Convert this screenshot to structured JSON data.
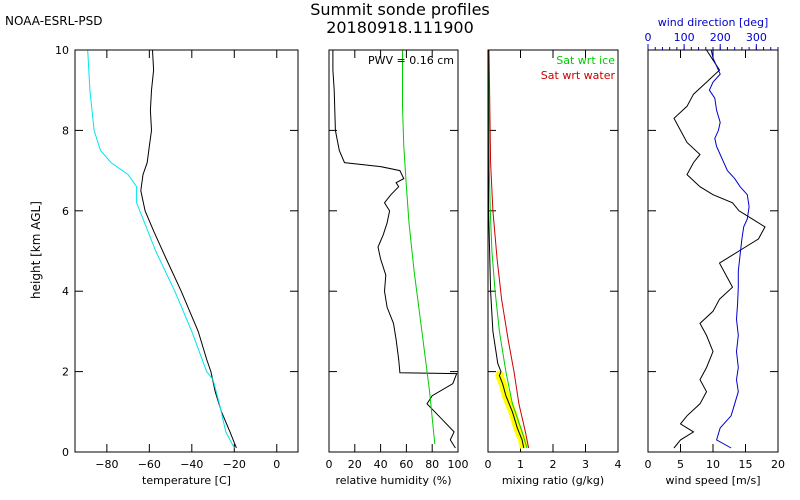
{
  "figure": {
    "org_label": "NOAA-ESRL-PSD",
    "title_line1": "Summit sonde profiles",
    "title_line2": "20180918.111900",
    "ylabel": "height [km AGL]"
  },
  "colors": {
    "axis": "#000000",
    "temperature": "#000000",
    "dewpoint": "#00e5ee",
    "rh": "#000000",
    "rh_ice_ref": "#00cc00",
    "mixing_ratio": "#000000",
    "mixing_ratio_band": "#ffff00",
    "sat_ice": "#00cc00",
    "sat_water": "#cc0000",
    "wind_speed": "#000000",
    "wind_direction": "#0000cc"
  },
  "chart_data": [
    {
      "type": "line",
      "id": "temperature",
      "xlabel": "temperature [C]",
      "ylabel": "height [km AGL]",
      "xlim": [
        -95,
        10
      ],
      "ylim": [
        0,
        10
      ],
      "xticks": [
        -80,
        -60,
        -40,
        -20,
        0
      ],
      "yticks": [
        0,
        2,
        4,
        6,
        8,
        10
      ],
      "series": [
        {
          "key": "temperature",
          "color": "#000000",
          "x": [
            -19,
            -22,
            -26,
            -29,
            -31,
            -33,
            -37,
            -45,
            -52,
            -58,
            -62,
            -64,
            -63,
            -61,
            -60,
            -59,
            -59.5,
            -59,
            -58,
            -58.5
          ],
          "y": [
            0.1,
            0.5,
            1.0,
            1.5,
            2.0,
            2.3,
            3.0,
            4.0,
            4.8,
            5.5,
            6.0,
            6.5,
            6.9,
            7.2,
            7.6,
            8.0,
            8.5,
            9.0,
            9.5,
            10.0
          ]
        },
        {
          "key": "dewpoint",
          "color": "#00e5ee",
          "x": [
            -20,
            -24,
            -27,
            -30,
            -33,
            -40,
            -48,
            -57,
            -63,
            -66,
            -66,
            -70,
            -78,
            -83,
            -86,
            -87,
            -88,
            -89
          ],
          "y": [
            0.1,
            0.5,
            1.2,
            1.8,
            2.0,
            3.0,
            4.0,
            5.0,
            5.8,
            6.2,
            6.6,
            6.9,
            7.2,
            7.5,
            8.0,
            8.5,
            9.0,
            10.0
          ]
        }
      ]
    },
    {
      "type": "line",
      "id": "relative-humidity",
      "xlabel": "relative humidity (%)",
      "xlim": [
        0,
        100
      ],
      "ylim": [
        0,
        10
      ],
      "xticks": [
        0,
        20,
        40,
        60,
        80,
        100
      ],
      "annotation": "PWV = 0.16 cm",
      "series": [
        {
          "key": "rh",
          "color": "#000000",
          "x": [
            98,
            94,
            97,
            88,
            82,
            76,
            80,
            96,
            99,
            55,
            54,
            52,
            50,
            45,
            43,
            44,
            40,
            38,
            42,
            45,
            47,
            43,
            48,
            54,
            52,
            58,
            55,
            40,
            12,
            8,
            5,
            4,
            3,
            3
          ],
          "y": [
            0.1,
            0.3,
            0.5,
            0.8,
            1.0,
            1.2,
            1.4,
            1.7,
            1.95,
            1.97,
            2.3,
            2.8,
            3.2,
            3.6,
            4.0,
            4.4,
            4.8,
            5.1,
            5.4,
            5.7,
            6.0,
            6.2,
            6.4,
            6.6,
            6.7,
            6.8,
            7.0,
            7.1,
            7.2,
            7.5,
            8.0,
            9.0,
            9.5,
            10.0
          ]
        },
        {
          "key": "rh_ice_ref",
          "color": "#00cc00",
          "x": [
            82,
            78,
            72,
            66,
            62,
            60,
            58,
            57,
            57
          ],
          "y": [
            0.2,
            1.5,
            3.0,
            4.5,
            5.7,
            6.6,
            7.6,
            8.6,
            10.0
          ]
        }
      ]
    },
    {
      "type": "line",
      "id": "mixing-ratio",
      "xlabel": "mixing ratio (g/kg)",
      "xlim": [
        0,
        4
      ],
      "ylim": [
        0,
        10
      ],
      "xticks": [
        0,
        1,
        2,
        3,
        4
      ],
      "legend": [
        "Sat wrt ice",
        "Sat wrt water"
      ],
      "legend_position": "top-right",
      "series": [
        {
          "key": "sat_ice",
          "color": "#00cc00",
          "x": [
            1.2,
            1.05,
            0.75,
            0.55,
            0.35,
            0.22,
            0.12,
            0.07,
            0.04,
            0.02
          ],
          "y": [
            0.1,
            0.5,
            1.2,
            2.0,
            3.0,
            4.0,
            5.0,
            6.0,
            7.0,
            10.0
          ]
        },
        {
          "key": "sat_water",
          "color": "#cc0000",
          "x": [
            1.25,
            1.15,
            0.95,
            0.8,
            0.62,
            0.42,
            0.28,
            0.15,
            0.08,
            0.03
          ],
          "y": [
            0.1,
            0.5,
            1.2,
            2.0,
            2.8,
            3.8,
            4.8,
            6.0,
            7.2,
            10.0
          ]
        },
        {
          "key": "mixing_ratio",
          "color": "#000000",
          "x": [
            1.1,
            1.05,
            0.9,
            0.75,
            0.55,
            0.45,
            0.35,
            0.4,
            0.3,
            0.15,
            0.08,
            0.05,
            0.02,
            0.01,
            0.01
          ],
          "y": [
            0.1,
            0.3,
            0.6,
            1.0,
            1.4,
            1.7,
            1.9,
            2.0,
            2.2,
            3.0,
            4.0,
            5.0,
            6.0,
            8.0,
            10.0
          ]
        }
      ]
    },
    {
      "type": "line",
      "id": "wind",
      "xlabel": "wind speed [m/s]",
      "xlim": [
        0,
        20
      ],
      "ylim": [
        0,
        10
      ],
      "xticks": [
        0,
        5,
        10,
        15,
        20
      ],
      "x2label": "wind direction [deg]",
      "x2lim": [
        0,
        360
      ],
      "x2ticks": [
        0,
        100,
        200,
        300
      ],
      "series": [
        {
          "key": "wind_speed",
          "color": "#000000",
          "x": [
            4,
            5,
            7,
            5,
            6,
            8,
            9,
            8,
            9,
            10,
            9,
            8,
            10,
            11,
            13,
            12,
            11,
            14,
            17,
            18,
            16,
            14,
            13,
            10,
            8,
            6,
            7,
            8,
            6,
            5,
            4,
            6,
            7,
            9,
            11,
            9
          ],
          "y": [
            0.1,
            0.3,
            0.5,
            0.7,
            0.9,
            1.2,
            1.5,
            1.8,
            2.1,
            2.5,
            2.9,
            3.2,
            3.5,
            3.8,
            4.1,
            4.4,
            4.7,
            5.0,
            5.3,
            5.6,
            5.8,
            6.0,
            6.2,
            6.4,
            6.6,
            6.9,
            7.2,
            7.4,
            7.7,
            8.0,
            8.3,
            8.6,
            8.9,
            9.2,
            9.5,
            10.0
          ]
        },
        {
          "key": "wind_direction",
          "color": "#0000cc",
          "x": [
            230,
            190,
            200,
            230,
            240,
            250,
            245,
            250,
            245,
            250,
            245,
            248,
            250,
            250,
            255,
            260,
            265,
            275,
            280,
            275,
            255,
            240,
            220,
            210,
            200,
            190,
            185,
            195,
            200,
            190,
            185,
            170,
            180,
            200,
            190,
            180,
            175
          ],
          "y": [
            0.1,
            0.3,
            0.6,
            0.9,
            1.2,
            1.5,
            1.8,
            2.1,
            2.5,
            2.9,
            3.3,
            3.7,
            4.1,
            4.5,
            4.9,
            5.3,
            5.6,
            5.8,
            6.1,
            6.4,
            6.6,
            6.8,
            7.0,
            7.2,
            7.4,
            7.6,
            7.8,
            8.0,
            8.2,
            8.5,
            8.8,
            9.0,
            9.2,
            9.4,
            9.6,
            9.8,
            10.0
          ]
        }
      ]
    }
  ]
}
